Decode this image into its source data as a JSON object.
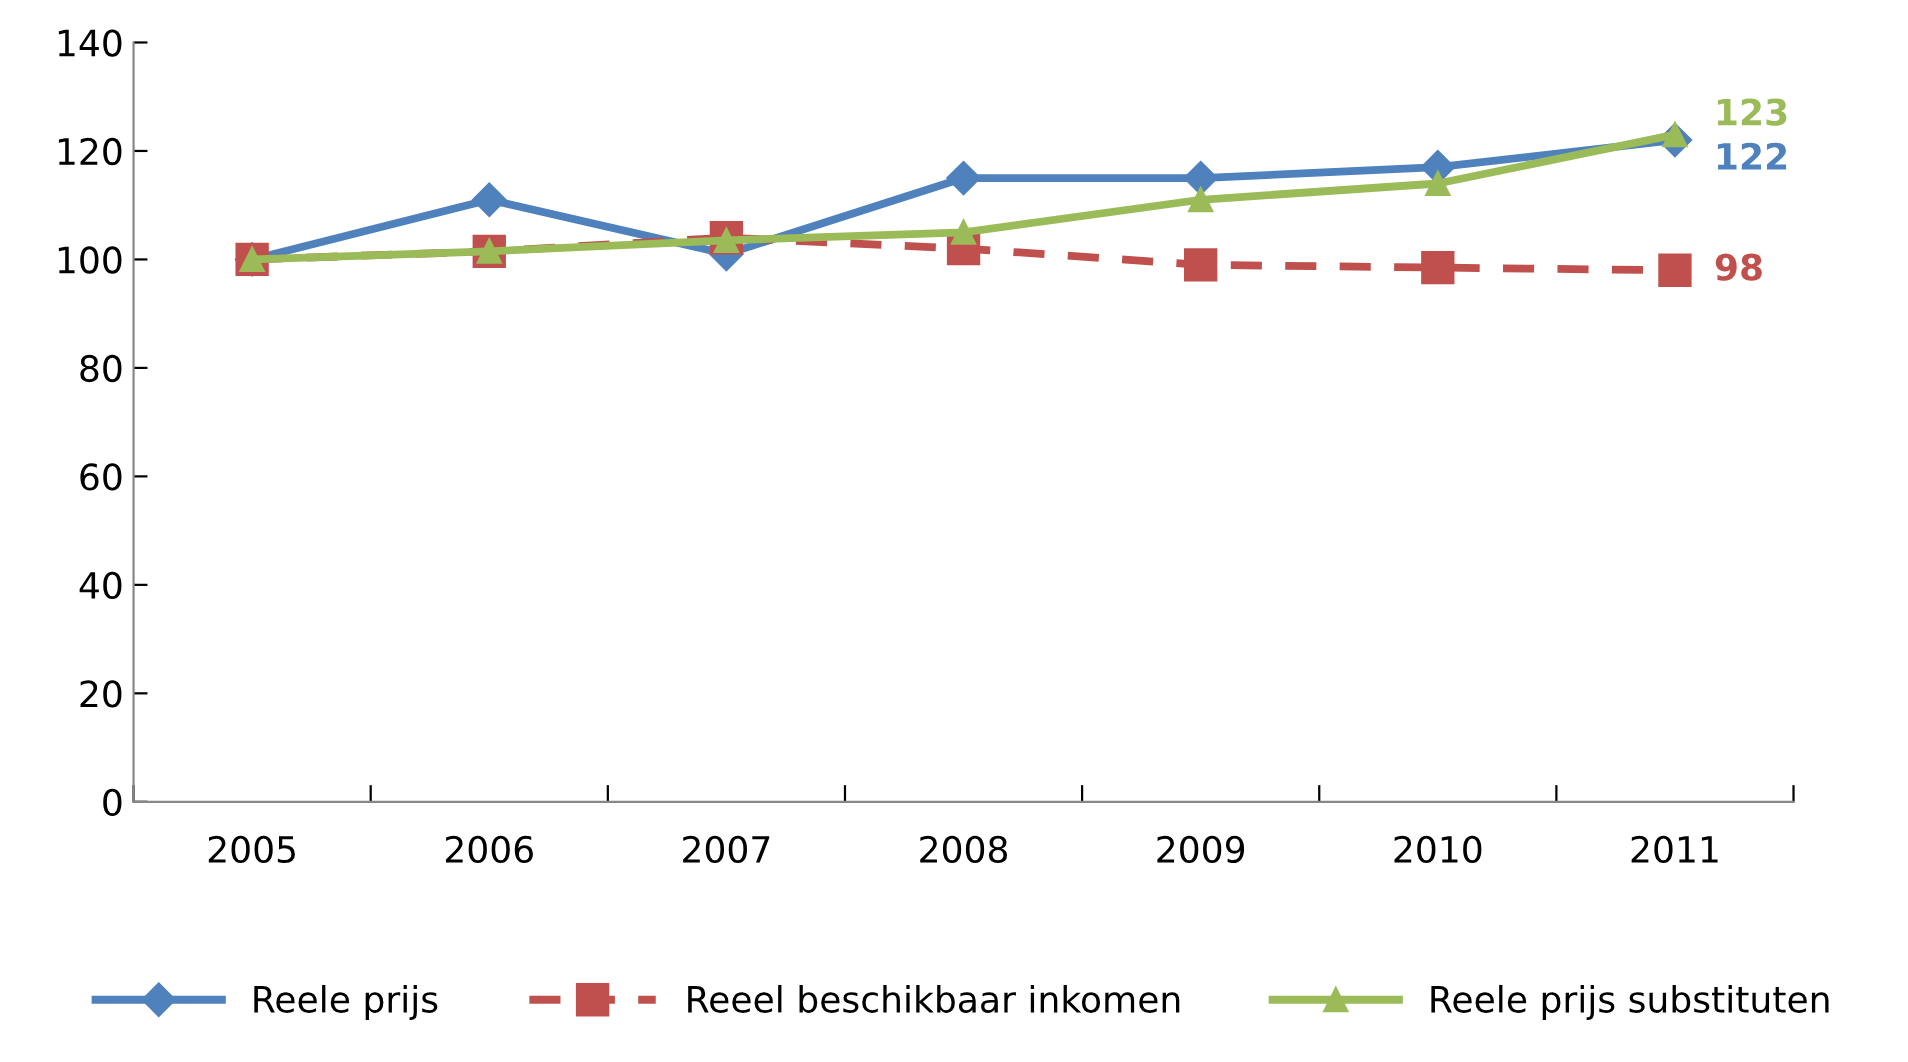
{
  "chart_data": {
    "type": "line",
    "categories": [
      "2005",
      "2006",
      "2007",
      "2008",
      "2009",
      "2010",
      "2011"
    ],
    "series": [
      {
        "name": "Reele prijs",
        "color": "#4f81bd",
        "marker": "diamond",
        "line_style": "solid",
        "values": [
          100,
          111,
          101,
          115,
          115,
          117,
          122
        ],
        "value_labels": [
          null,
          null,
          null,
          null,
          null,
          null,
          "122"
        ]
      },
      {
        "name": "Reeel beschikbaar inkomen",
        "color": "#c0504d",
        "marker": "square",
        "line_style": "dashed",
        "values": [
          100,
          101.5,
          104,
          102,
          99,
          98.5,
          98
        ],
        "value_labels": [
          null,
          null,
          null,
          null,
          null,
          null,
          "98"
        ]
      },
      {
        "name": "Reele prijs substituten",
        "color": "#9bbb59",
        "marker": "triangle",
        "line_style": "solid",
        "values": [
          100,
          101.5,
          103.5,
          105,
          111,
          114,
          123
        ],
        "value_labels": [
          null,
          null,
          null,
          null,
          null,
          null,
          "123"
        ]
      }
    ],
    "ylim": [
      0,
      140
    ],
    "yticks": [
      0,
      20,
      40,
      60,
      80,
      100,
      120,
      140
    ],
    "grid": false,
    "legend": "bottom"
  }
}
